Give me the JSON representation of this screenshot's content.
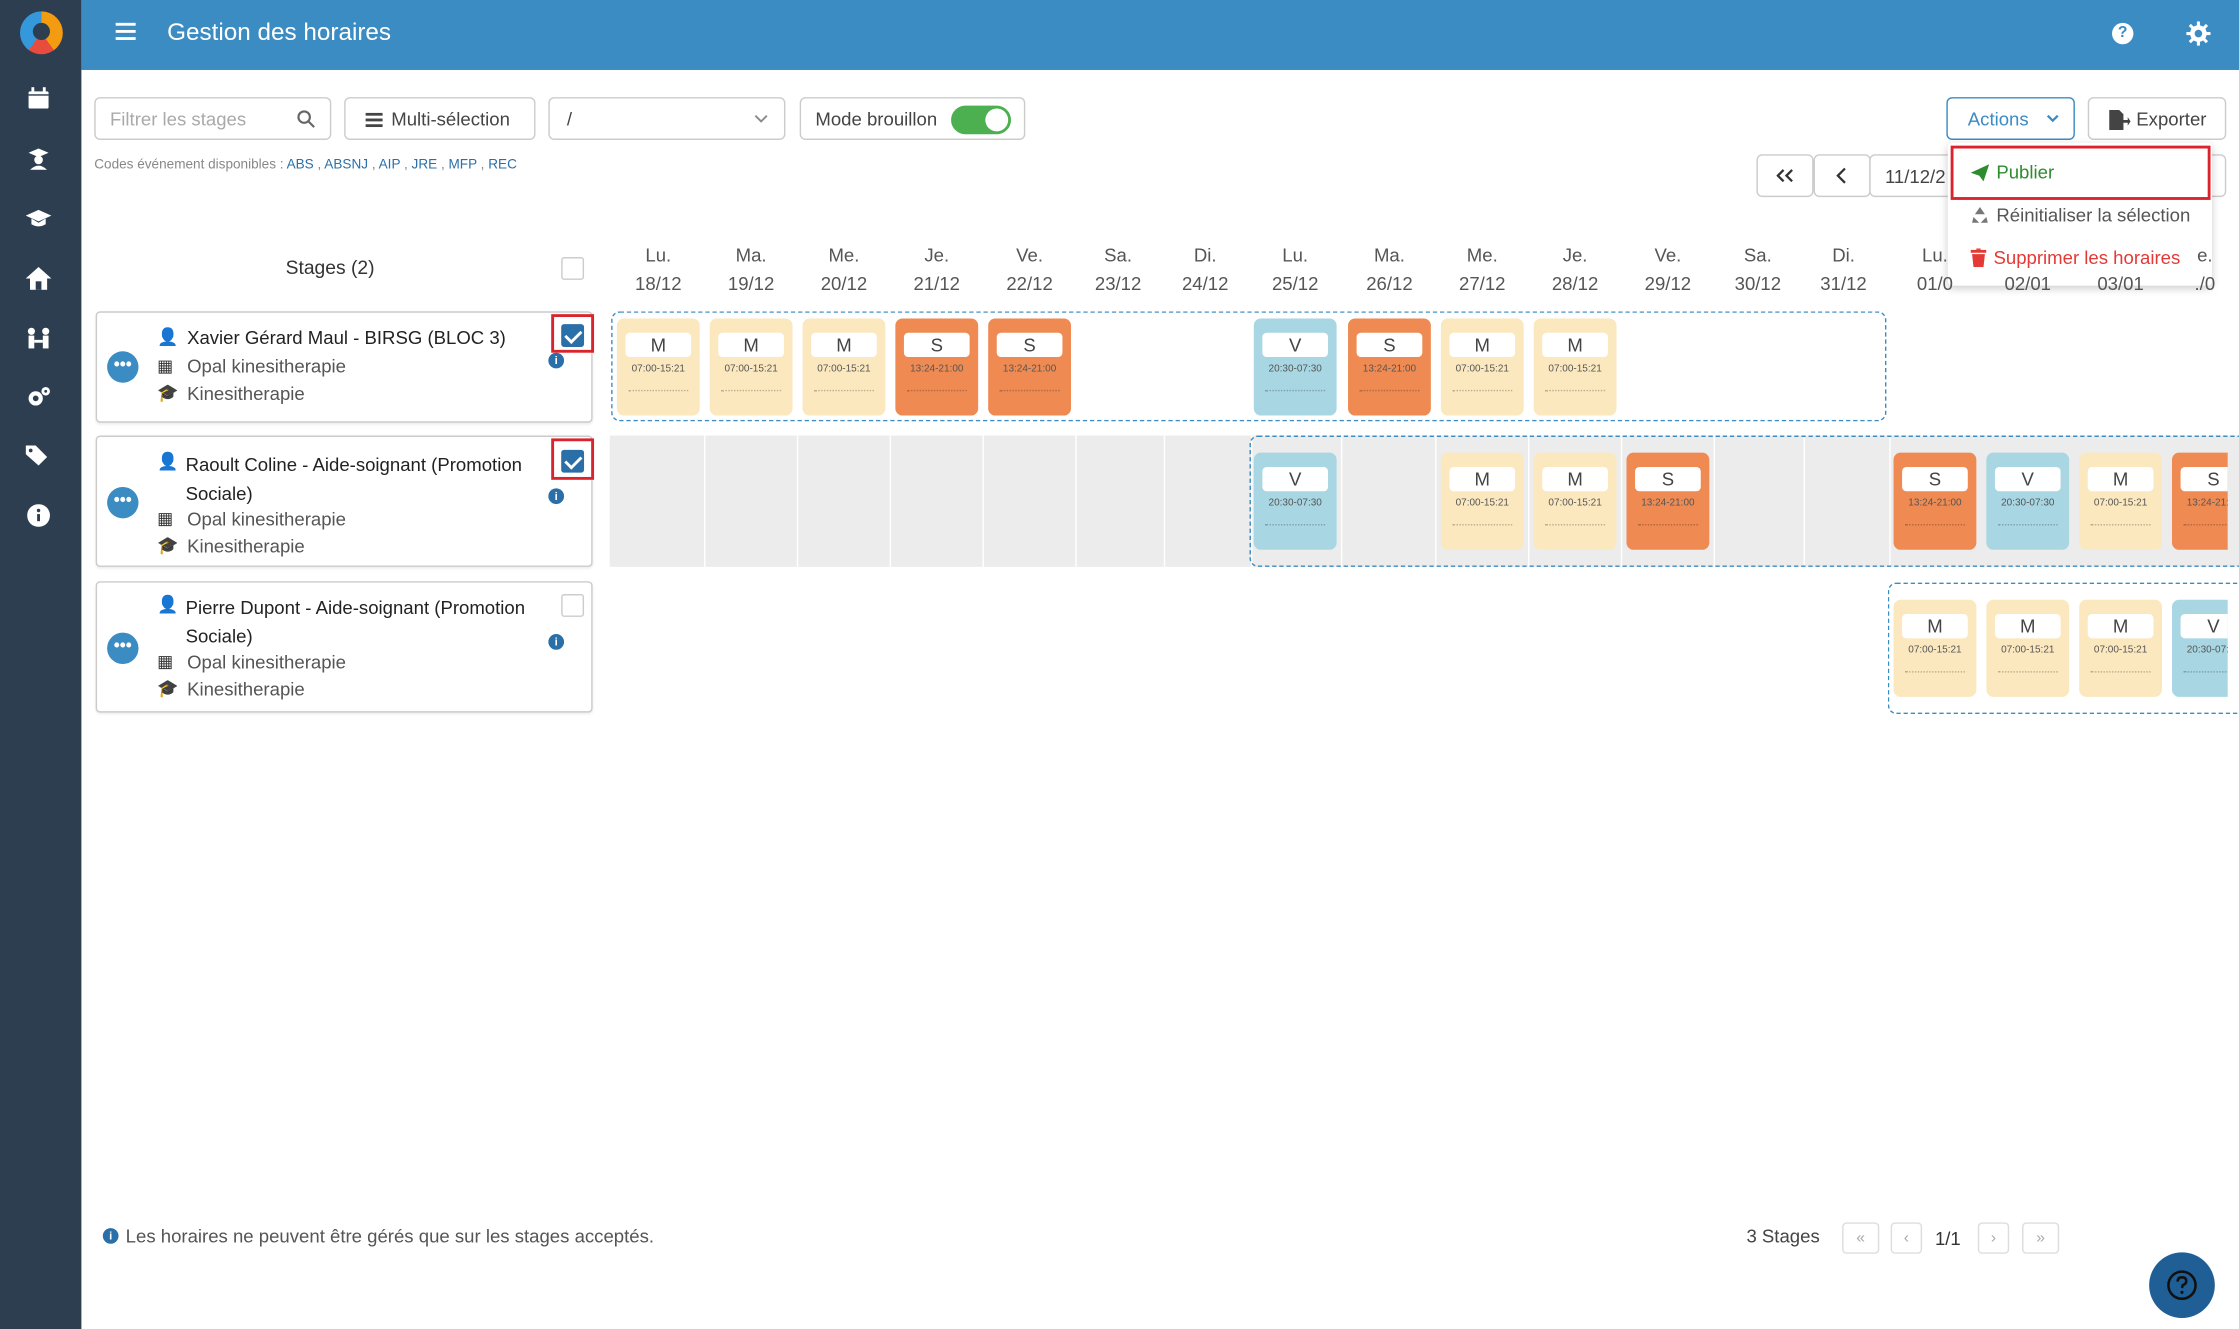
{
  "header": {
    "title": "Gestion des horaires"
  },
  "toolbar": {
    "filter_placeholder": "Filtrer les stages",
    "multiselect_label": "Multi-sélection",
    "select_value": "/",
    "draft_mode_label": "Mode brouillon",
    "draft_mode_on": true,
    "actions_label": "Actions",
    "export_label": "Exporter"
  },
  "codes": {
    "label": "Codes événement disponibles :",
    "items": [
      "ABS",
      "ABSNJ",
      "AIP",
      "JRE",
      "MFP",
      "REC"
    ]
  },
  "date_nav": {
    "date_value": "11/12/2"
  },
  "actions_menu": {
    "publish": "Publier",
    "reset": "Réinitialiser la sélection",
    "delete": "Supprimer les horaires"
  },
  "stages_header": "Stages (2)",
  "days": [
    {
      "d": "Lu.",
      "n": "18/12"
    },
    {
      "d": "Ma.",
      "n": "19/12"
    },
    {
      "d": "Me.",
      "n": "20/12"
    },
    {
      "d": "Je.",
      "n": "21/12"
    },
    {
      "d": "Ve.",
      "n": "22/12"
    },
    {
      "d": "Sa.",
      "n": "23/12"
    },
    {
      "d": "Di.",
      "n": "24/12"
    },
    {
      "d": "Lu.",
      "n": "25/12"
    },
    {
      "d": "Ma.",
      "n": "26/12"
    },
    {
      "d": "Me.",
      "n": "27/12"
    },
    {
      "d": "Je.",
      "n": "28/12"
    },
    {
      "d": "Ve.",
      "n": "29/12"
    },
    {
      "d": "Sa.",
      "n": "30/12"
    },
    {
      "d": "Di.",
      "n": "31/12"
    },
    {
      "d": "Lu.",
      "n": "01/0"
    },
    {
      "d": "",
      "n": "02/01"
    },
    {
      "d": "",
      "n": "03/01"
    },
    {
      "d": "e.",
      "n": "./0"
    }
  ],
  "stages": [
    {
      "name": "Xavier Gérard Maul - BIRSG (BLOC 3)",
      "place": "Opal kinesitherapie",
      "field": "Kinesitherapie",
      "checked": true
    },
    {
      "name": "Raoult Coline - Aide-soignant (Promotion Sociale)",
      "place": "Opal kinesitherapie",
      "field": "Kinesitherapie",
      "checked": true
    },
    {
      "name": "Pierre Dupont - Aide-soignant (Promotion Sociale)",
      "place": "Opal kinesitherapie",
      "field": "Kinesitherapie",
      "checked": false
    }
  ],
  "shift_times": {
    "M": "07:00-15:21",
    "S": "13:24-21:00",
    "V": "20:30-07:30"
  },
  "shifts": {
    "row0": [
      [
        "M",
        0
      ],
      [
        "M",
        1
      ],
      [
        "M",
        2
      ],
      [
        "S",
        3
      ],
      [
        "S",
        4
      ],
      [
        "V",
        7
      ],
      [
        "S",
        8
      ],
      [
        "M",
        9
      ],
      [
        "M",
        10
      ]
    ],
    "row1": [
      [
        "V",
        7
      ],
      [
        "M",
        9
      ],
      [
        "M",
        10
      ],
      [
        "S",
        11
      ],
      [
        "S",
        14
      ],
      [
        "V",
        15
      ],
      [
        "M",
        16
      ],
      [
        "S",
        17
      ]
    ],
    "row2": [
      [
        "M",
        14
      ],
      [
        "M",
        15
      ],
      [
        "M",
        16
      ],
      [
        "V",
        17
      ]
    ]
  },
  "footer": {
    "note": "Les horaires ne peuvent être gérés que sur les stages acceptés.",
    "count": "3 Stages",
    "page": "1/1"
  },
  "colors": {
    "primary": "#3b8cc3",
    "sidebar": "#2c3e50",
    "morning": "#fbe8bf",
    "evening": "#ee8a52",
    "night": "#a8d6e3",
    "danger": "#e53935",
    "success": "#2e8b2e"
  }
}
